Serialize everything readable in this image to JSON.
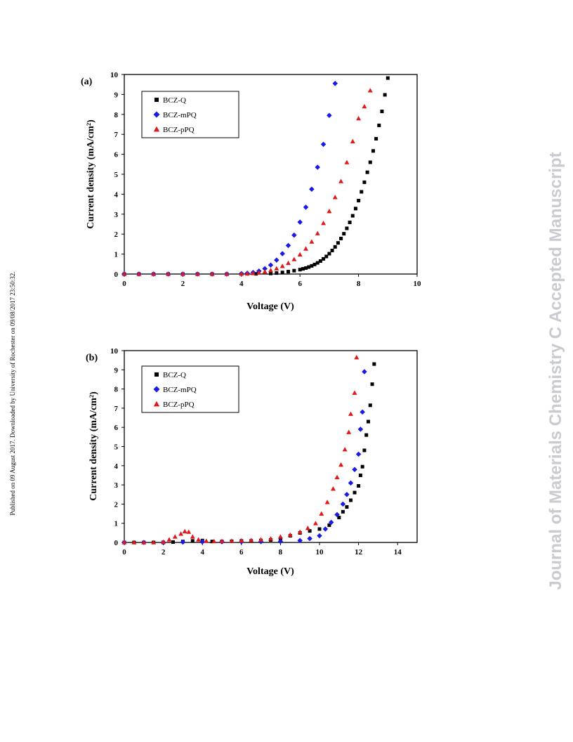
{
  "page": {
    "side_note": "Published on 09 August 2017. Downloaded by University of Rochester on 09/08/2017 23:50:32.",
    "watermark": "Journal of Materials Chemistry C Accepted Manuscript"
  },
  "chart_data": [
    {
      "type": "scatter",
      "panel_label": "(a)",
      "xlabel": "Voltage (V)",
      "ylabel": "Current density (mA/cm²)",
      "xlim": [
        0,
        10
      ],
      "ylim": [
        0,
        10
      ],
      "xticks": [
        0,
        2,
        4,
        6,
        8,
        10
      ],
      "yticks": [
        0,
        1,
        2,
        3,
        4,
        5,
        6,
        7,
        8,
        9,
        10
      ],
      "grid": false,
      "legend_position": "top-left",
      "series": [
        {
          "name": "BCZ-Q",
          "color": "#000000",
          "marker": "square",
          "x": [
            0,
            0.5,
            1,
            1.5,
            2,
            2.5,
            3,
            3.5,
            4,
            4.5,
            5,
            5.2,
            5.4,
            5.6,
            5.8,
            6,
            6.1,
            6.2,
            6.3,
            6.4,
            6.5,
            6.6,
            6.7,
            6.8,
            6.9,
            7,
            7.1,
            7.2,
            7.3,
            7.4,
            7.5,
            7.6,
            7.7,
            7.8,
            7.9,
            8,
            8.1,
            8.2,
            8.3,
            8.4,
            8.5,
            8.6,
            8.7,
            8.8,
            8.9,
            9
          ],
          "y": [
            0,
            0,
            0,
            0,
            0,
            0,
            0,
            0,
            0,
            0.01,
            0.03,
            0.05,
            0.08,
            0.12,
            0.17,
            0.22,
            0.26,
            0.3,
            0.35,
            0.41,
            0.48,
            0.56,
            0.65,
            0.76,
            0.88,
            1.02,
            1.18,
            1.36,
            1.56,
            1.78,
            2.02,
            2.29,
            2.59,
            2.92,
            3.28,
            3.68,
            4.12,
            4.6,
            5.1,
            5.6,
            6.17,
            6.78,
            7.45,
            8.15,
            8.98,
            9.82
          ]
        },
        {
          "name": "BCZ-mPQ",
          "color": "#1a1ae6",
          "marker": "diamond",
          "x": [
            0,
            0.5,
            1,
            1.5,
            2,
            2.5,
            3,
            3.5,
            4,
            4.2,
            4.4,
            4.6,
            4.8,
            5,
            5.2,
            5.4,
            5.6,
            5.8,
            6,
            6.2,
            6.4,
            6.6,
            6.8,
            7,
            7.2
          ],
          "y": [
            0,
            0,
            0,
            0,
            0,
            0,
            0,
            0,
            0.02,
            0.04,
            0.08,
            0.15,
            0.27,
            0.45,
            0.7,
            1.02,
            1.43,
            1.95,
            2.6,
            3.35,
            4.25,
            5.35,
            6.5,
            7.95,
            9.55
          ]
        },
        {
          "name": "BCZ-pPQ",
          "color": "#e01a1a",
          "marker": "triangle",
          "x": [
            0,
            0.5,
            1,
            1.5,
            2,
            2.5,
            3,
            3.5,
            4,
            4.2,
            4.4,
            4.6,
            4.8,
            5,
            5.2,
            5.4,
            5.6,
            5.8,
            6,
            6.2,
            6.4,
            6.6,
            6.8,
            7,
            7.2,
            7.4,
            7.6,
            7.8,
            8,
            8.2,
            8.4
          ],
          "y": [
            0,
            0,
            0,
            0,
            0,
            0,
            0,
            0,
            0.01,
            0.02,
            0.04,
            0.07,
            0.12,
            0.19,
            0.28,
            0.4,
            0.55,
            0.74,
            0.98,
            1.27,
            1.62,
            2.04,
            2.55,
            3.15,
            3.85,
            4.65,
            5.6,
            6.65,
            7.8,
            8.4,
            9.2
          ]
        }
      ]
    },
    {
      "type": "scatter",
      "panel_label": "(b)",
      "xlabel": "Voltage (V)",
      "ylabel": "Current density (mA/cm²)",
      "xlim": [
        0,
        15
      ],
      "ylim": [
        0,
        10
      ],
      "xticks": [
        0,
        2,
        4,
        6,
        8,
        10,
        12,
        14
      ],
      "yticks": [
        0,
        1,
        2,
        3,
        4,
        5,
        6,
        7,
        8,
        9,
        10
      ],
      "grid": false,
      "legend_position": "top-left",
      "series": [
        {
          "name": "BCZ-Q",
          "color": "#000000",
          "marker": "square",
          "x": [
            0,
            0.5,
            1,
            1.5,
            2,
            2.5,
            3,
            3.5,
            4,
            4.5,
            5,
            5.5,
            6,
            6.5,
            7,
            7.5,
            8,
            8.5,
            9,
            9.5,
            10,
            10.5,
            11,
            11.2,
            11.4,
            11.6,
            11.8,
            12,
            12.1,
            12.2,
            12.3,
            12.4,
            12.5,
            12.6,
            12.7,
            12.8
          ],
          "y": [
            0,
            0,
            0,
            0,
            0,
            0.02,
            0.05,
            0.08,
            0.1,
            0.05,
            0.05,
            0.06,
            0.08,
            0.08,
            0.1,
            0.13,
            0.2,
            0.35,
            0.5,
            0.6,
            0.7,
            0.9,
            1.3,
            1.6,
            1.85,
            2.2,
            2.6,
            2.95,
            3.5,
            3.95,
            4.8,
            5.6,
            6.3,
            7.15,
            8.25,
            9.3
          ]
        },
        {
          "name": "BCZ-mPQ",
          "color": "#1a1ae6",
          "marker": "diamond",
          "x": [
            0,
            1,
            2,
            3,
            4,
            5,
            6,
            7,
            8,
            9,
            9.5,
            10,
            10.3,
            10.6,
            10.9,
            11.2,
            11.4,
            11.6,
            11.8,
            12,
            12.1,
            12.2,
            12.3
          ],
          "y": [
            0,
            0,
            0,
            0.02,
            0.03,
            0.03,
            0.03,
            0.04,
            0.05,
            0.1,
            0.2,
            0.35,
            0.7,
            1.05,
            1.45,
            2.0,
            2.5,
            3.1,
            3.8,
            4.6,
            5.9,
            6.8,
            8.9
          ]
        },
        {
          "name": "BCZ-pPQ",
          "color": "#e01a1a",
          "marker": "triangle",
          "x": [
            0,
            0.5,
            1,
            1.5,
            2,
            2.3,
            2.6,
            2.9,
            3.1,
            3.3,
            3.5,
            3.8,
            4.2,
            4.6,
            5,
            5.5,
            6,
            6.5,
            7,
            7.5,
            8,
            8.5,
            9,
            9.4,
            9.8,
            10.1,
            10.4,
            10.7,
            10.9,
            11.1,
            11.3,
            11.5,
            11.6,
            11.8,
            11.9
          ],
          "y": [
            0,
            0,
            0,
            0,
            0.03,
            0.15,
            0.3,
            0.45,
            0.58,
            0.55,
            0.3,
            0.15,
            0.08,
            0.06,
            0.07,
            0.08,
            0.1,
            0.12,
            0.15,
            0.2,
            0.3,
            0.4,
            0.55,
            0.75,
            1.0,
            1.5,
            2.1,
            2.8,
            3.4,
            4.05,
            4.85,
            5.75,
            6.7,
            7.8,
            9.65
          ]
        }
      ]
    }
  ]
}
